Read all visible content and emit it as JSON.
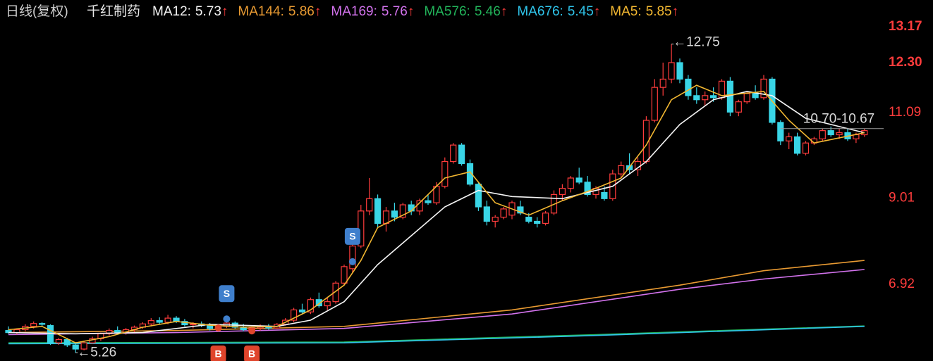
{
  "chart_data": {
    "type": "candlestick",
    "period": "日线(复权)",
    "stock": "千红制药",
    "indicators": [
      {
        "label": "MA12:",
        "value": 5.73,
        "trend": "↑",
        "color": "#f4f4f4",
        "x": [
          0,
          8,
          16,
          24,
          32,
          36,
          40,
          44,
          48,
          52,
          56,
          60,
          66,
          72,
          76,
          80,
          84,
          88,
          91,
          95,
          102
        ],
        "values": [
          5.75,
          5.72,
          5.75,
          5.95,
          5.9,
          6.05,
          6.5,
          7.4,
          8.1,
          8.8,
          9.2,
          9.05,
          9.0,
          9.3,
          9.9,
          10.8,
          11.4,
          11.6,
          11.5,
          10.95,
          10.6
        ]
      },
      {
        "label": "MA144:",
        "value": 5.86,
        "trend": "↑",
        "color": "#e89a32",
        "x": [
          0,
          20,
          40,
          60,
          80,
          90,
          102
        ],
        "values": [
          5.75,
          5.8,
          5.9,
          6.3,
          6.9,
          7.25,
          7.5
        ]
      },
      {
        "label": "MA169:",
        "value": 5.76,
        "trend": "↑",
        "color": "#d272ec",
        "x": [
          0,
          20,
          40,
          60,
          80,
          90,
          102
        ],
        "values": [
          5.7,
          5.75,
          5.85,
          6.2,
          6.8,
          7.05,
          7.28
        ]
      },
      {
        "label": "MA576:",
        "value": 5.46,
        "trend": "↑",
        "color": "#22b35a",
        "x": [
          0,
          40,
          70,
          102
        ],
        "values": [
          5.5,
          5.52,
          5.7,
          5.91
        ]
      },
      {
        "label": "MA676:",
        "value": 5.45,
        "trend": "↑",
        "color": "#2fc4ea",
        "x": [
          0,
          40,
          70,
          102
        ],
        "values": [
          5.48,
          5.5,
          5.68,
          5.9
        ]
      },
      {
        "label": "MA5:",
        "value": 5.85,
        "trend": "↑",
        "color": "#f2b731",
        "x": [
          0,
          4,
          8,
          12,
          16,
          20,
          24,
          28,
          32,
          36,
          40,
          42,
          44,
          48,
          52,
          55,
          58,
          62,
          66,
          70,
          73,
          76,
          79,
          82,
          85,
          90,
          93,
          96,
          102
        ],
        "values": [
          5.82,
          5.9,
          5.5,
          5.65,
          5.88,
          6.02,
          5.93,
          5.88,
          5.9,
          6.3,
          6.9,
          7.5,
          8.3,
          8.7,
          9.5,
          9.65,
          8.9,
          8.6,
          8.95,
          9.25,
          9.5,
          10.3,
          11.4,
          11.75,
          11.5,
          11.6,
          10.9,
          10.35,
          10.6
        ]
      }
    ],
    "trend_color": "#ff3c3c",
    "up_color": "#ff3c3c",
    "down_color": "#39d5e6",
    "candles": [
      [
        5.8,
        5.9,
        5.72,
        5.75
      ],
      [
        5.75,
        5.85,
        5.7,
        5.82
      ],
      [
        5.82,
        5.95,
        5.78,
        5.9
      ],
      [
        5.9,
        6.02,
        5.85,
        5.97
      ],
      [
        5.97,
        6.0,
        5.9,
        5.95
      ],
      [
        5.92,
        5.95,
        5.45,
        5.5
      ],
      [
        5.5,
        5.62,
        5.45,
        5.58
      ],
      [
        5.58,
        5.62,
        5.4,
        5.45
      ],
      [
        5.45,
        5.5,
        5.26,
        5.35
      ],
      [
        5.35,
        5.55,
        5.32,
        5.5
      ],
      [
        5.5,
        5.65,
        5.48,
        5.6
      ],
      [
        5.6,
        5.75,
        5.55,
        5.72
      ],
      [
        5.72,
        5.85,
        5.68,
        5.8
      ],
      [
        5.8,
        5.9,
        5.72,
        5.76
      ],
      [
        5.76,
        5.86,
        5.7,
        5.82
      ],
      [
        5.82,
        5.92,
        5.75,
        5.88
      ],
      [
        5.88,
        6.0,
        5.84,
        5.96
      ],
      [
        5.96,
        6.1,
        5.9,
        6.04
      ],
      [
        6.04,
        6.12,
        5.96,
        6.0
      ],
      [
        6.0,
        6.18,
        5.95,
        6.1
      ],
      [
        6.1,
        6.15,
        5.98,
        6.02
      ],
      [
        6.02,
        6.08,
        5.9,
        5.94
      ],
      [
        5.94,
        6.0,
        5.85,
        5.96
      ],
      [
        5.96,
        6.02,
        5.88,
        5.92
      ],
      [
        5.92,
        5.98,
        5.8,
        5.85
      ],
      [
        5.85,
        5.95,
        5.8,
        5.9
      ],
      [
        5.9,
        6.05,
        5.86,
        5.98
      ],
      [
        5.98,
        6.02,
        5.84,
        5.88
      ],
      [
        5.88,
        5.96,
        5.78,
        5.82
      ],
      [
        5.82,
        5.9,
        5.76,
        5.86
      ],
      [
        5.86,
        5.95,
        5.8,
        5.9
      ],
      [
        5.9,
        5.96,
        5.82,
        5.86
      ],
      [
        5.86,
        5.98,
        5.84,
        5.95
      ],
      [
        5.95,
        6.1,
        5.92,
        6.05
      ],
      [
        6.05,
        6.35,
        6.0,
        6.3
      ],
      [
        6.3,
        6.45,
        6.2,
        6.25
      ],
      [
        6.25,
        6.6,
        6.2,
        6.55
      ],
      [
        6.55,
        6.72,
        6.35,
        6.4
      ],
      [
        6.4,
        6.6,
        6.3,
        6.5
      ],
      [
        6.5,
        7.0,
        6.45,
        6.95
      ],
      [
        6.95,
        7.4,
        6.9,
        7.35
      ],
      [
        7.3,
        7.9,
        7.2,
        7.85
      ],
      [
        7.85,
        8.85,
        7.8,
        8.7
      ],
      [
        8.7,
        9.5,
        8.6,
        9.0
      ],
      [
        9.0,
        9.1,
        8.3,
        8.4
      ],
      [
        8.4,
        8.8,
        8.2,
        8.7
      ],
      [
        8.7,
        8.9,
        8.45,
        8.55
      ],
      [
        8.55,
        8.9,
        8.5,
        8.85
      ],
      [
        8.85,
        8.95,
        8.6,
        8.7
      ],
      [
        8.7,
        9.0,
        8.6,
        8.95
      ],
      [
        8.95,
        9.1,
        8.85,
        8.9
      ],
      [
        8.9,
        9.4,
        8.85,
        9.3
      ],
      [
        9.3,
        10.0,
        9.25,
        9.9
      ],
      [
        9.9,
        10.35,
        9.85,
        10.3
      ],
      [
        10.3,
        10.35,
        9.8,
        9.85
      ],
      [
        9.85,
        9.95,
        9.3,
        9.35
      ],
      [
        9.35,
        9.4,
        8.7,
        8.8
      ],
      [
        8.8,
        8.95,
        8.35,
        8.45
      ],
      [
        8.45,
        8.6,
        8.3,
        8.55
      ],
      [
        8.55,
        8.8,
        8.5,
        8.75
      ],
      [
        8.6,
        8.95,
        8.5,
        8.9
      ],
      [
        8.8,
        8.95,
        8.6,
        8.65
      ],
      [
        8.55,
        8.65,
        8.4,
        8.45
      ],
      [
        8.45,
        8.55,
        8.3,
        8.4
      ],
      [
        8.4,
        8.7,
        8.35,
        8.65
      ],
      [
        8.65,
        9.2,
        8.6,
        9.1
      ],
      [
        9.1,
        9.35,
        8.95,
        9.25
      ],
      [
        9.25,
        9.55,
        9.15,
        9.5
      ],
      [
        9.5,
        9.75,
        9.35,
        9.4
      ],
      [
        9.4,
        9.55,
        9.05,
        9.1
      ],
      [
        9.1,
        9.3,
        9.0,
        9.25
      ],
      [
        9.15,
        9.3,
        8.95,
        9.0
      ],
      [
        9.0,
        9.7,
        8.95,
        9.6
      ],
      [
        9.6,
        9.9,
        9.5,
        9.8
      ],
      [
        9.8,
        10.1,
        9.6,
        9.7
      ],
      [
        9.7,
        10.0,
        9.55,
        9.9
      ],
      [
        9.9,
        11.0,
        9.85,
        10.9
      ],
      [
        10.9,
        11.9,
        10.85,
        11.7
      ],
      [
        11.7,
        12.3,
        11.5,
        11.9
      ],
      [
        11.9,
        12.75,
        11.8,
        12.3
      ],
      [
        12.3,
        12.4,
        11.8,
        11.9
      ],
      [
        11.9,
        12.0,
        11.4,
        11.5
      ],
      [
        11.5,
        11.7,
        11.3,
        11.4
      ],
      [
        11.4,
        11.6,
        11.25,
        11.5
      ],
      [
        11.5,
        11.7,
        11.35,
        11.45
      ],
      [
        11.45,
        11.9,
        11.4,
        11.85
      ],
      [
        11.85,
        11.95,
        11.0,
        11.1
      ],
      [
        11.1,
        11.4,
        11.0,
        11.35
      ],
      [
        11.35,
        11.6,
        11.3,
        11.55
      ],
      [
        11.55,
        11.75,
        11.4,
        11.45
      ],
      [
        11.45,
        12.0,
        11.4,
        11.9
      ],
      [
        11.9,
        11.95,
        10.8,
        10.85
      ],
      [
        10.85,
        10.9,
        10.3,
        10.4
      ],
      [
        10.4,
        10.6,
        10.2,
        10.5
      ],
      [
        10.5,
        10.6,
        10.05,
        10.1
      ],
      [
        10.1,
        10.4,
        10.05,
        10.35
      ],
      [
        10.35,
        10.5,
        10.3,
        10.45
      ],
      [
        10.45,
        10.7,
        10.4,
        10.65
      ],
      [
        10.65,
        10.75,
        10.5,
        10.55
      ],
      [
        10.55,
        10.7,
        10.45,
        10.6
      ],
      [
        10.6,
        10.7,
        10.4,
        10.45
      ],
      [
        10.45,
        10.6,
        10.35,
        10.55
      ],
      [
        10.55,
        10.7,
        10.5,
        10.65
      ]
    ],
    "ylim": [
      5.06,
      13.82
    ],
    "yticks": [
      6.92,
      9.01,
      11.09,
      {
        "value": 12.3,
        "label": "12.30"
      },
      13.17
    ],
    "annotations": [
      {
        "index": 79,
        "value": 12.75,
        "label": "←12.75"
      },
      {
        "index": 8,
        "value": 5.26,
        "label": "←5.26"
      }
    ],
    "range_marker": {
      "from_index": 92,
      "values": [
        10.7,
        10.67
      ],
      "label": "10.70-10.67"
    },
    "signals": [
      {
        "label": "S",
        "index": 41,
        "value": 7.47,
        "color": "#3f7fcc"
      },
      {
        "label": "S",
        "index": 26,
        "value": 6.08,
        "color": "#3f7fcc"
      },
      {
        "label": "B",
        "index": 25,
        "value": 5.86,
        "color": "#e0452c"
      },
      {
        "label": "B",
        "index": 29,
        "value": 5.79,
        "color": "#e0452c"
      }
    ]
  }
}
